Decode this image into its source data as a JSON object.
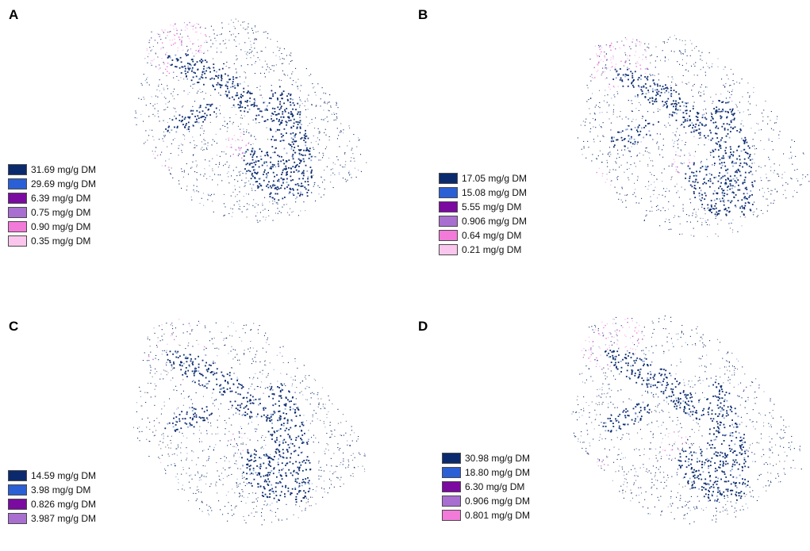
{
  "palette": {
    "dark_navy": "#0b2a6e",
    "mid_blue": "#2a5fd6",
    "light_blue": "#8aa6d6",
    "purple": "#7b0aa0",
    "lilac": "#a86fd0",
    "pink": "#f27ad8",
    "light_pink": "#fbc6ee",
    "gray_speck": "#6b7280"
  },
  "panels": [
    {
      "id": "A",
      "letter": "A",
      "legend": [
        {
          "label": "31.69 mg/g DM",
          "color": "#0b2a6e"
        },
        {
          "label": "29.69 mg/g DM",
          "color": "#2a5fd6"
        },
        {
          "label": "6.39 mg/g DM",
          "color": "#7b0aa0"
        },
        {
          "label": "0.75 mg/g DM",
          "color": "#a86fd0"
        },
        {
          "label": "0.90 mg/g DM",
          "color": "#f27ad8"
        },
        {
          "label": "0.35 mg/g DM",
          "color": "#fbc6ee"
        }
      ]
    },
    {
      "id": "B",
      "letter": "B",
      "legend": [
        {
          "label": "17.05 mg/g DM",
          "color": "#0b2a6e"
        },
        {
          "label": "15.08 mg/g DM",
          "color": "#2a5fd6"
        },
        {
          "label": "5.55 mg/g DM",
          "color": "#7b0aa0"
        },
        {
          "label": "0.906 mg/g DM",
          "color": "#a86fd0"
        },
        {
          "label": "0.64 mg/g DM",
          "color": "#f27ad8"
        },
        {
          "label": "0.21 mg/g DM",
          "color": "#fbc6ee"
        }
      ]
    },
    {
      "id": "C",
      "letter": "C",
      "legend": [
        {
          "label": "14.59 mg/g DM",
          "color": "#0b2a6e"
        },
        {
          "label": "3.98 mg/g DM",
          "color": "#2a5fd6"
        },
        {
          "label": "0.826 mg/g DM",
          "color": "#7b0aa0"
        },
        {
          "label": "3.987 mg/g DM",
          "color": "#a86fd0"
        }
      ]
    },
    {
      "id": "D",
      "letter": "D",
      "legend": [
        {
          "label": "30.98 mg/g DM",
          "color": "#0b2a6e"
        },
        {
          "label": "18.80 mg/g DM",
          "color": "#2a5fd6"
        },
        {
          "label": "6.30 mg/g DM",
          "color": "#7b0aa0"
        },
        {
          "label": "0.906 mg/g DM",
          "color": "#a86fd0"
        },
        {
          "label": "0.801 mg/g DM",
          "color": "#f27ad8"
        }
      ]
    }
  ]
}
